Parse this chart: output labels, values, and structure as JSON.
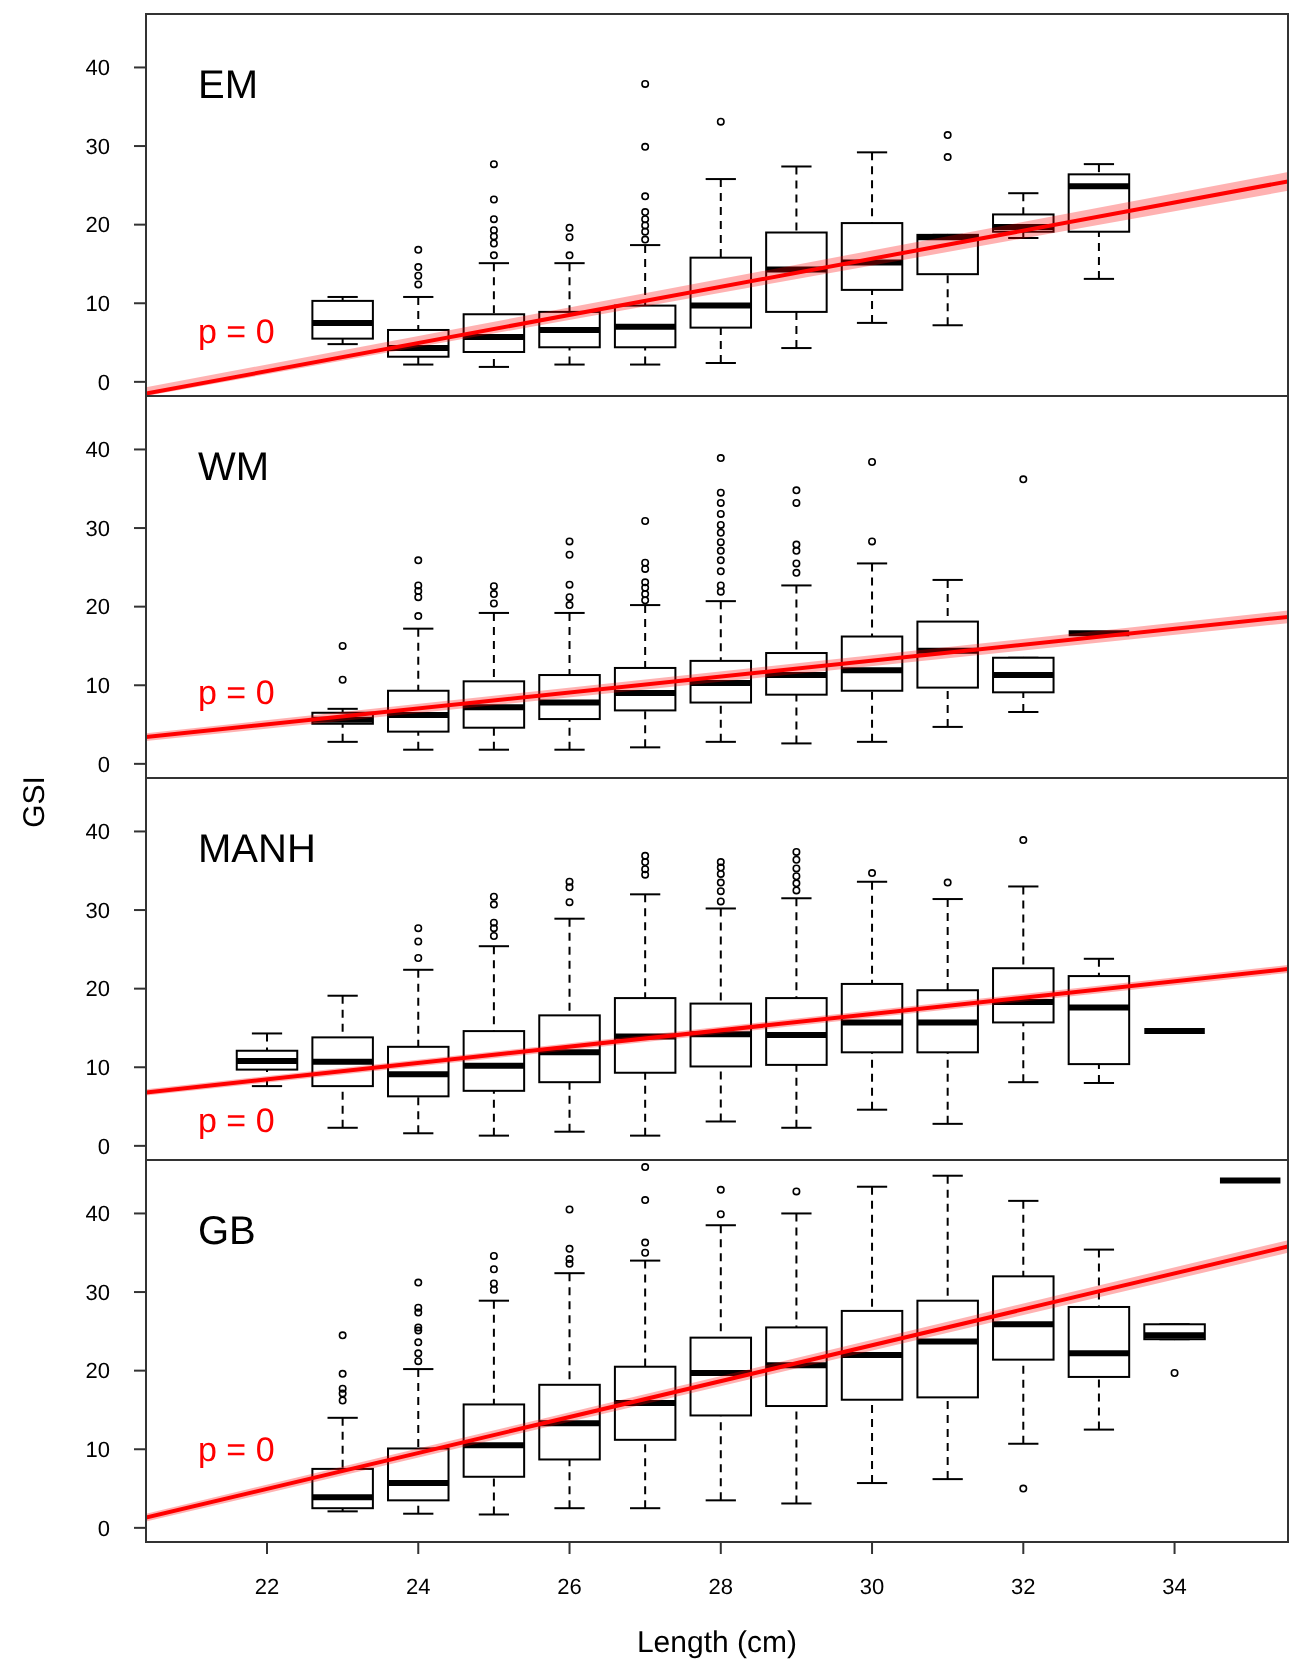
{
  "chart_data": [
    {
      "type": "box",
      "title": "EM",
      "xlim": [
        20.4,
        35.5
      ],
      "ylim": [
        -1.8,
        46.8
      ],
      "yticks": [
        0,
        10,
        20,
        30,
        40
      ],
      "tick_labels": "y",
      "annotations": [
        "p = 0"
      ],
      "series": [
        {
          "color": "#000000",
          "x": [
            23,
            24,
            25,
            26,
            27,
            28,
            29,
            30,
            31,
            32,
            33
          ],
          "boxes": [
            {
              "low": 4.8,
              "q1": 5.5,
              "median": 7.5,
              "q3": 10.3,
              "high": 10.8
            },
            {
              "low": 2.2,
              "q1": 3.2,
              "median": 4.3,
              "q3": 6.6,
              "high": 10.8,
              "outliers": [
                12.4,
                13.5,
                14.6,
                16.8
              ]
            },
            {
              "low": 1.9,
              "q1": 3.8,
              "median": 5.7,
              "q3": 8.6,
              "high": 15.1,
              "outliers": [
                16.1,
                17.6,
                18.5,
                19.3,
                20.7,
                23.2,
                27.7
              ]
            },
            {
              "low": 2.2,
              "q1": 4.4,
              "median": 6.6,
              "q3": 8.9,
              "high": 15.1,
              "outliers": [
                16.1,
                18.4,
                19.6
              ]
            },
            {
              "low": 2.2,
              "q1": 4.4,
              "median": 7.0,
              "q3": 9.7,
              "high": 17.4,
              "outliers": [
                18.1,
                19.1,
                19.9,
                20.7,
                21.6,
                23.6,
                29.9,
                37.9
              ]
            },
            {
              "low": 2.4,
              "q1": 6.9,
              "median": 9.7,
              "q3": 15.8,
              "high": 25.8,
              "outliers": [
                33.1
              ]
            },
            {
              "low": 4.3,
              "q1": 8.9,
              "median": 14.3,
              "q3": 19.0,
              "high": 27.4
            },
            {
              "low": 7.5,
              "q1": 11.7,
              "median": 15.2,
              "q3": 20.2,
              "high": 29.2
            },
            {
              "low": 7.2,
              "q1": 13.7,
              "median": 18.4,
              "q3": 18.7,
              "high": 18.7,
              "outliers": [
                28.6,
                31.4
              ]
            },
            {
              "low": 18.3,
              "q1": 19.1,
              "median": 19.7,
              "q3": 21.3,
              "high": 24.0
            },
            {
              "low": 13.1,
              "q1": 19.1,
              "median": 24.9,
              "q3": 26.4,
              "high": 27.7
            }
          ]
        },
        {
          "type": "line",
          "color": "#ff0000",
          "x": [
            20.4,
            35.5
          ],
          "values": [
            -1.5,
            25.5
          ],
          "lower": [
            -1.8,
            24.3
          ],
          "upper": [
            -0.7,
            26.7
          ]
        }
      ]
    },
    {
      "type": "box",
      "title": "WM",
      "xlim": [
        20.4,
        35.5
      ],
      "ylim": [
        -1.8,
        46.8
      ],
      "yticks": [
        0,
        10,
        20,
        30,
        40
      ],
      "tick_labels": "y",
      "annotations": [
        "p = 0"
      ],
      "series": [
        {
          "color": "#000000",
          "x": [
            23,
            24,
            25,
            26,
            27,
            28,
            29,
            30,
            31,
            32,
            33
          ],
          "boxes": [
            {
              "low": 2.8,
              "q1": 5.1,
              "median": 5.6,
              "q3": 6.5,
              "high": 7.0,
              "outliers": [
                10.7,
                15.0
              ]
            },
            {
              "low": 1.8,
              "q1": 4.1,
              "median": 6.2,
              "q3": 9.3,
              "high": 17.2,
              "outliers": [
                18.8,
                21.2,
                22.0,
                22.7,
                25.9
              ]
            },
            {
              "low": 1.8,
              "q1": 4.6,
              "median": 7.2,
              "q3": 10.5,
              "high": 19.2,
              "outliers": [
                20.4,
                21.6,
                22.6
              ]
            },
            {
              "low": 1.8,
              "q1": 5.7,
              "median": 7.8,
              "q3": 11.3,
              "high": 19.2,
              "outliers": [
                20.2,
                21.2,
                22.8,
                26.6,
                28.3
              ]
            },
            {
              "low": 2.1,
              "q1": 6.8,
              "median": 9.0,
              "q3": 12.2,
              "high": 20.2,
              "outliers": [
                20.8,
                21.6,
                22.4,
                23.1,
                24.8,
                25.6,
                30.9
              ]
            },
            {
              "low": 2.8,
              "q1": 7.8,
              "median": 10.3,
              "q3": 13.1,
              "high": 20.7,
              "outliers": [
                21.9,
                22.7,
                24.5,
                25.9,
                27.1,
                28.2,
                29.4,
                30.4,
                31.8,
                33.2,
                34.5,
                38.9
              ]
            },
            {
              "low": 2.6,
              "q1": 8.8,
              "median": 11.3,
              "q3": 14.1,
              "high": 22.7,
              "outliers": [
                24.3,
                25.5,
                27.1,
                27.9,
                33.2,
                34.8
              ]
            },
            {
              "low": 2.8,
              "q1": 9.3,
              "median": 11.9,
              "q3": 16.2,
              "high": 25.5,
              "outliers": [
                28.3,
                38.4
              ]
            },
            {
              "low": 4.7,
              "q1": 9.7,
              "median": 14.4,
              "q3": 18.1,
              "high": 23.4
            },
            {
              "low": 6.6,
              "q1": 9.1,
              "median": 11.3,
              "q3": 13.5,
              "high": 13.5,
              "outliers": [
                36.2
              ]
            },
            {
              "low": 16.6,
              "q1": 16.6,
              "median": 16.6,
              "q3": 16.6,
              "high": 16.6
            }
          ]
        },
        {
          "type": "line",
          "color": "#ff0000",
          "x": [
            20.4,
            35.5
          ],
          "values": [
            3.4,
            18.7
          ],
          "lower": [
            2.9,
            17.9
          ],
          "upper": [
            3.9,
            19.5
          ]
        }
      ]
    },
    {
      "type": "box",
      "title": "MANH",
      "ylabel": "GSI",
      "xlim": [
        20.4,
        35.5
      ],
      "ylim": [
        -1.8,
        46.8
      ],
      "yticks": [
        0,
        10,
        20,
        30,
        40
      ],
      "tick_labels": "y",
      "annotations": [
        "p = 0"
      ],
      "series": [
        {
          "color": "#000000",
          "x": [
            22,
            23,
            24,
            25,
            26,
            27,
            28,
            29,
            30,
            31,
            32,
            33,
            34
          ],
          "boxes": [
            {
              "low": 7.6,
              "q1": 9.7,
              "median": 10.8,
              "q3": 12.1,
              "high": 14.3
            },
            {
              "low": 2.3,
              "q1": 7.6,
              "median": 10.7,
              "q3": 13.8,
              "high": 19.1
            },
            {
              "low": 1.6,
              "q1": 6.3,
              "median": 9.1,
              "q3": 12.6,
              "high": 22.4,
              "outliers": [
                23.9,
                26.0,
                27.7
              ]
            },
            {
              "low": 1.3,
              "q1": 7.0,
              "median": 10.2,
              "q3": 14.6,
              "high": 25.4,
              "outliers": [
                26.7,
                27.7,
                28.4,
                30.7,
                31.7
              ]
            },
            {
              "low": 1.8,
              "q1": 8.1,
              "median": 11.9,
              "q3": 16.6,
              "high": 28.9,
              "outliers": [
                31.0,
                32.9,
                33.6
              ]
            },
            {
              "low": 1.3,
              "q1": 9.3,
              "median": 13.9,
              "q3": 18.8,
              "high": 32.0,
              "outliers": [
                34.5,
                35.2,
                36.1,
                36.9
              ]
            },
            {
              "low": 3.1,
              "q1": 10.1,
              "median": 14.2,
              "q3": 18.1,
              "high": 30.2,
              "outliers": [
                31.1,
                32.4,
                33.5,
                34.6,
                35.4,
                36.1
              ]
            },
            {
              "low": 2.3,
              "q1": 10.3,
              "median": 14.1,
              "q3": 18.8,
              "high": 31.5,
              "outliers": [
                32.5,
                33.4,
                34.3,
                35.3,
                36.4,
                37.4
              ]
            },
            {
              "low": 4.6,
              "q1": 11.9,
              "median": 15.7,
              "q3": 20.6,
              "high": 33.6,
              "outliers": [
                34.7
              ]
            },
            {
              "low": 2.8,
              "q1": 11.9,
              "median": 15.7,
              "q3": 19.8,
              "high": 31.4,
              "outliers": [
                33.5
              ]
            },
            {
              "low": 8.1,
              "q1": 15.7,
              "median": 18.3,
              "q3": 22.6,
              "high": 33.0,
              "outliers": [
                38.9
              ]
            },
            {
              "low": 8.0,
              "q1": 10.4,
              "median": 17.6,
              "q3": 21.6,
              "high": 23.8
            },
            {
              "low": 14.6,
              "q1": 14.6,
              "median": 14.6,
              "q3": 14.6,
              "high": 14.6
            }
          ]
        },
        {
          "type": "line",
          "color": "#ff0000",
          "x": [
            20.4,
            35.5
          ],
          "values": [
            6.8,
            22.5
          ],
          "lower": [
            6.4,
            22.0
          ],
          "upper": [
            7.2,
            23.0
          ]
        }
      ]
    },
    {
      "type": "box",
      "title": "GB",
      "xlabel": "Length (cm)",
      "xlim": [
        20.4,
        35.5
      ],
      "ylim": [
        -1.8,
        46.8
      ],
      "xticks": [
        22,
        24,
        26,
        28,
        30,
        32,
        34
      ],
      "yticks": [
        0,
        10,
        20,
        30,
        40
      ],
      "annotations": [
        "p = 0"
      ],
      "series": [
        {
          "color": "#000000",
          "x": [
            23,
            24,
            25,
            26,
            27,
            28,
            29,
            30,
            31,
            32,
            33,
            34,
            35
          ],
          "boxes": [
            {
              "low": 2.1,
              "q1": 2.5,
              "median": 3.9,
              "q3": 7.5,
              "high": 14.0,
              "outliers": [
                16.2,
                17.1,
                17.7,
                19.6,
                24.5
              ]
            },
            {
              "low": 1.8,
              "q1": 3.5,
              "median": 5.7,
              "q3": 10.1,
              "high": 20.2,
              "outliers": [
                21.2,
                22.2,
                23.6,
                25.1,
                25.5,
                27.4,
                28.0,
                31.2
              ]
            },
            {
              "low": 1.7,
              "q1": 6.5,
              "median": 10.5,
              "q3": 15.7,
              "high": 28.9,
              "outliers": [
                30.3,
                31.1,
                32.9,
                34.6
              ]
            },
            {
              "low": 2.5,
              "q1": 8.7,
              "median": 13.3,
              "q3": 18.2,
              "high": 32.4,
              "outliers": [
                33.6,
                34.2,
                35.5,
                40.5
              ]
            },
            {
              "low": 2.5,
              "q1": 11.2,
              "median": 15.9,
              "q3": 20.5,
              "high": 34.0,
              "outliers": [
                35.0,
                36.3,
                41.7,
                45.9
              ]
            },
            {
              "low": 3.5,
              "q1": 14.3,
              "median": 19.7,
              "q3": 24.2,
              "high": 38.5,
              "outliers": [
                39.9,
                43.0
              ]
            },
            {
              "low": 3.1,
              "q1": 15.5,
              "median": 20.7,
              "q3": 25.5,
              "high": 40.0,
              "outliers": [
                42.8
              ]
            },
            {
              "low": 5.7,
              "q1": 16.3,
              "median": 22.0,
              "q3": 27.6,
              "high": 43.4
            },
            {
              "low": 6.2,
              "q1": 16.6,
              "median": 23.7,
              "q3": 28.9,
              "high": 44.8
            },
            {
              "low": 10.7,
              "q1": 21.4,
              "median": 25.9,
              "q3": 32.0,
              "high": 41.6,
              "outliers": [
                5.0
              ]
            },
            {
              "low": 12.5,
              "q1": 19.2,
              "median": 22.2,
              "q3": 28.1,
              "high": 35.4
            },
            {
              "low": 24.0,
              "q1": 24.0,
              "median": 24.5,
              "q3": 25.9,
              "high": 25.9,
              "outliers": [
                19.7
              ]
            },
            {
              "low": 44.2,
              "q1": 44.2,
              "median": 44.2,
              "q3": 44.2,
              "high": 44.2
            }
          ]
        },
        {
          "type": "line",
          "color": "#ff0000",
          "x": [
            20.4,
            35.5
          ],
          "values": [
            1.3,
            35.8
          ],
          "lower": [
            0.8,
            35.0
          ],
          "upper": [
            1.8,
            36.6
          ]
        }
      ]
    }
  ]
}
